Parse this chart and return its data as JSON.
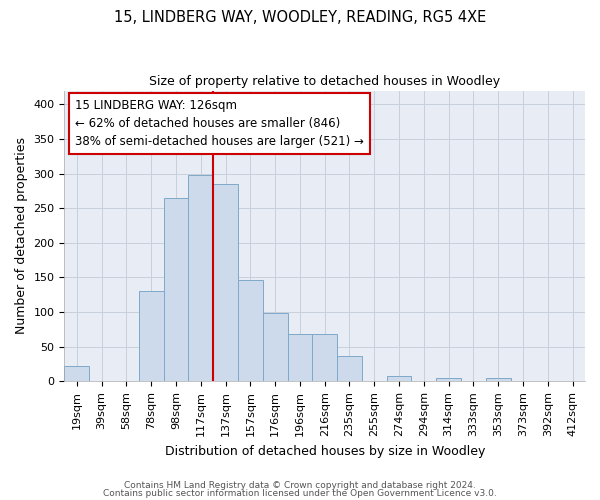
{
  "title": "15, LINDBERG WAY, WOODLEY, READING, RG5 4XE",
  "subtitle": "Size of property relative to detached houses in Woodley",
  "xlabel": "Distribution of detached houses by size in Woodley",
  "ylabel": "Number of detached properties",
  "categories": [
    "19sqm",
    "39sqm",
    "58sqm",
    "78sqm",
    "98sqm",
    "117sqm",
    "137sqm",
    "157sqm",
    "176sqm",
    "196sqm",
    "216sqm",
    "235sqm",
    "255sqm",
    "274sqm",
    "294sqm",
    "314sqm",
    "333sqm",
    "353sqm",
    "373sqm",
    "392sqm",
    "412sqm"
  ],
  "values": [
    22,
    0,
    0,
    130,
    265,
    298,
    285,
    147,
    98,
    68,
    68,
    37,
    0,
    8,
    0,
    5,
    0,
    5,
    0,
    0,
    0
  ],
  "bar_color": "#cddaeb",
  "bar_edge_color": "#7fa8c8",
  "grid_color": "#c8d0dc",
  "bg_color": "#e8edf5",
  "property_line_color": "#cc0000",
  "annotation_line1": "15 LINDBERG WAY: 126sqm",
  "annotation_line2": "← 62% of detached houses are smaller (846)",
  "annotation_line3": "38% of semi-detached houses are larger (521) →",
  "annotation_box_color": "#cc0000",
  "footer_line1": "Contains HM Land Registry data © Crown copyright and database right 2024.",
  "footer_line2": "Contains public sector information licensed under the Open Government Licence v3.0.",
  "ylim": [
    0,
    420
  ],
  "yticks": [
    0,
    50,
    100,
    150,
    200,
    250,
    300,
    350,
    400
  ],
  "red_line_index": 5.5,
  "title_fontsize": 10.5,
  "subtitle_fontsize": 9,
  "axis_label_fontsize": 9,
  "tick_fontsize": 8,
  "annotation_fontsize": 8.5,
  "footer_fontsize": 6.5
}
